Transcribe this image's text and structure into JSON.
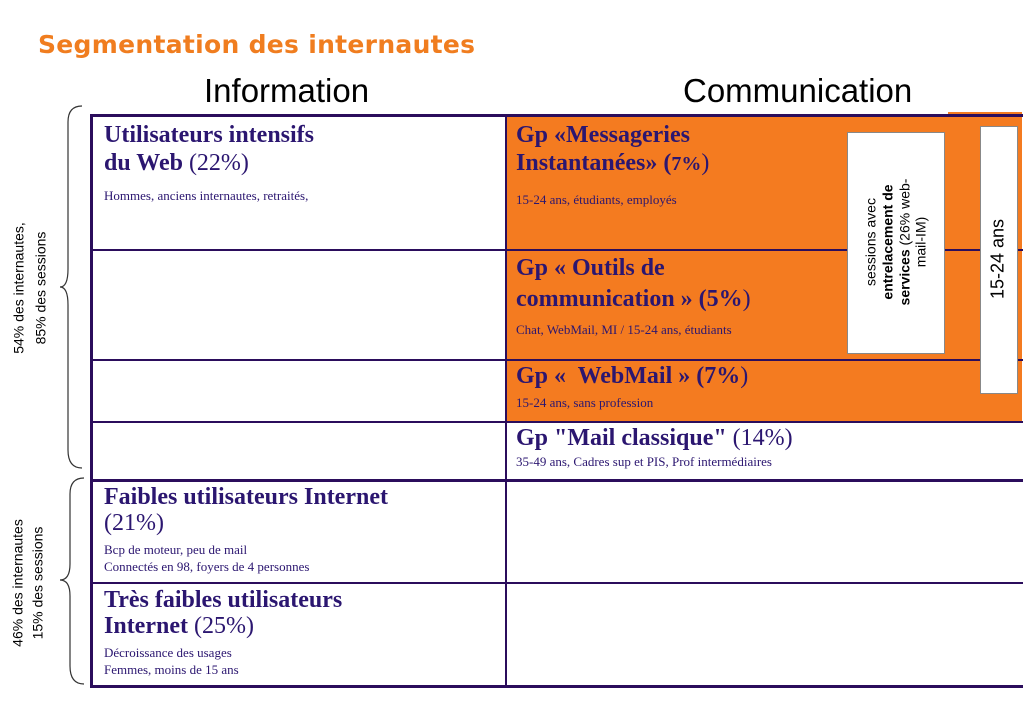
{
  "title": "Segmentation des internautes",
  "columns": {
    "info": "Information",
    "comm": "Communication"
  },
  "side_labels": {
    "top": {
      "line1": "54% des internautes,",
      "line2": "85% des sessions"
    },
    "bottom": {
      "line1": "46% des internautes",
      "line2": "15% des sessions"
    }
  },
  "segments": {
    "intensifs": {
      "line1": "Utilisateurs intensifs",
      "line2": "du Web",
      "pct": "(22%)",
      "desc": "Hommes, anciens internautes, retraités,"
    },
    "messageries": {
      "line1": "Gp «Messageries",
      "line2": "Instantanées» (",
      "pct": "7%",
      "close": ")",
      "desc": "15-24 ans, étudiants, employés"
    },
    "outils": {
      "line1": "Gp « Outils de",
      "line2": "communication » (",
      "pct": "5%",
      "close": ")",
      "desc": "Chat, WebMail, MI / 15-24 ans, étudiants"
    },
    "webmail": {
      "label": "Gp «  WebMail » (",
      "pct": "7%",
      "close": ")",
      "desc": "15-24 ans, sans profession"
    },
    "mail_classique": {
      "label": "Gp \"Mail classique\"",
      "pct": " (14%)",
      "desc": "35-49 ans, Cadres sup et PIS, Prof intermédiaires"
    },
    "faibles": {
      "label": "Faibles utilisateurs Internet",
      "pct": "(21%)",
      "desc1": "Bcp de moteur, peu de mail",
      "desc2": "Connectés en 98, foyers de 4 personnes"
    },
    "tres_faibles": {
      "line1": "Très faibles utilisateurs",
      "line2": "Internet",
      "pct": " (25%)",
      "desc1": "Décroissance des usages",
      "desc2": "Femmes, moins de 15 ans"
    }
  },
  "callouts": {
    "sessions": {
      "l1": "sessions avec",
      "l2": "entrelacement de",
      "l3b": "services",
      "l3": " (26% web-",
      "l4": "mail-IM)"
    },
    "age": "15-24 ans"
  },
  "colors": {
    "accent": "#f07d1f",
    "fill": "#f47b20",
    "grid": "#2b0d5c",
    "text": "#2b1670"
  }
}
